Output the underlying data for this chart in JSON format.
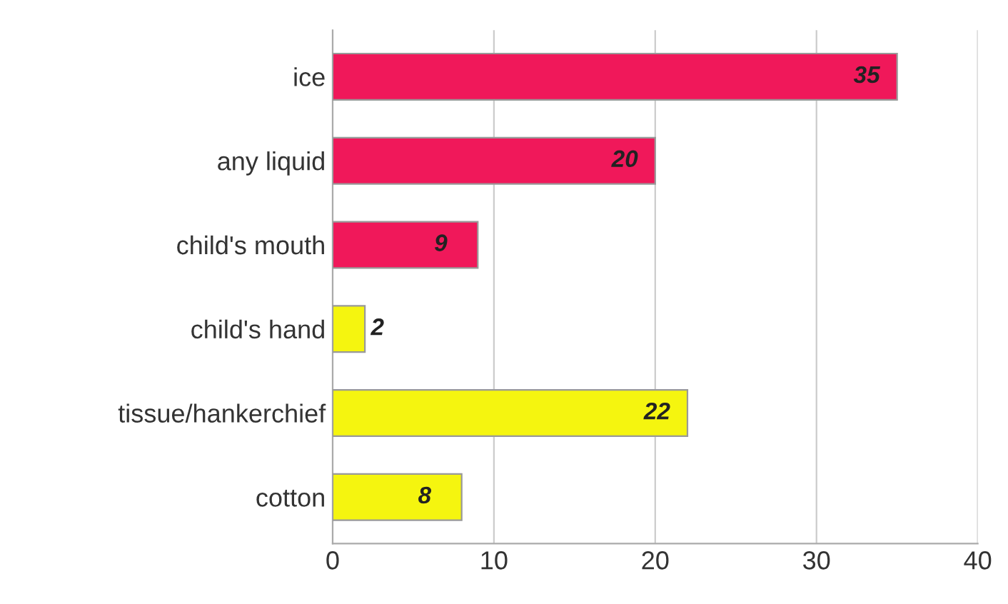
{
  "chart_data": {
    "type": "bar",
    "orientation": "horizontal",
    "categories": [
      "ice",
      "any liquid",
      "child's mouth",
      "child's hand",
      "tissue/hankerchief",
      "cotton"
    ],
    "values": [
      35,
      20,
      9,
      2,
      22,
      8
    ],
    "colors": [
      "#f0185a",
      "#f0185a",
      "#f0185a",
      "#f5f50f",
      "#f5f50f",
      "#f5f50f"
    ],
    "xlim": [
      0,
      40
    ],
    "xticks": [
      0,
      10,
      20,
      30,
      40
    ],
    "grid": "x",
    "data_labels": true
  }
}
